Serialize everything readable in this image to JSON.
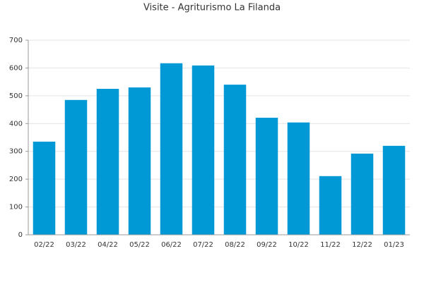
{
  "chart_data": {
    "type": "bar",
    "title": "Visite - Agriturismo La Filanda",
    "categories": [
      "02/22",
      "03/22",
      "04/22",
      "05/22",
      "06/22",
      "07/22",
      "08/22",
      "09/22",
      "10/22",
      "11/22",
      "12/22",
      "01/23"
    ],
    "values": [
      335,
      485,
      525,
      530,
      617,
      609,
      540,
      421,
      404,
      211,
      292,
      320
    ],
    "color": "#0099d6",
    "ylim": [
      0,
      700
    ],
    "yticks": [
      0,
      100,
      200,
      300,
      400,
      500,
      600,
      700
    ],
    "grid": true
  }
}
